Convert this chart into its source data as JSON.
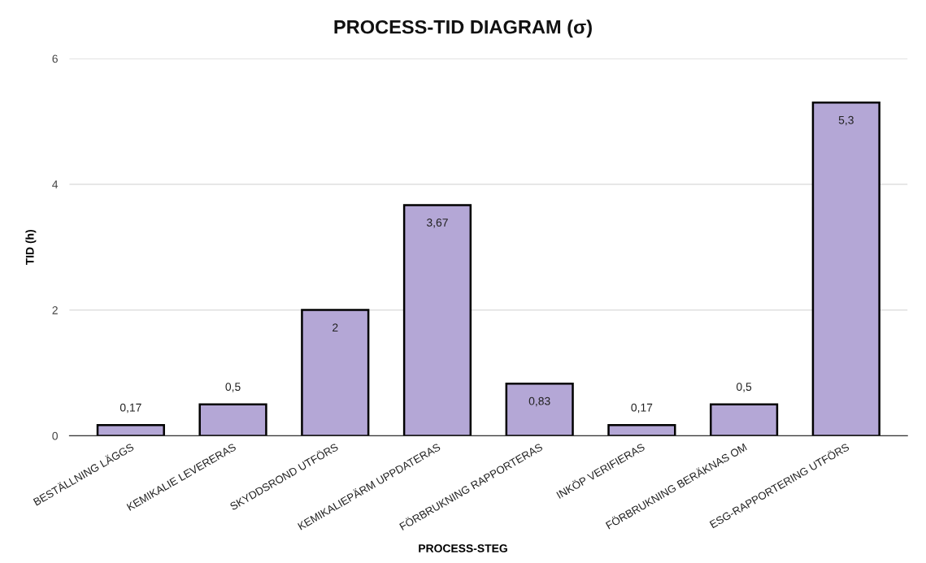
{
  "chart_data": {
    "type": "bar",
    "title": "PROCESS-TID DIAGRAM (σ)",
    "xlabel": "PROCESS-STEG",
    "ylabel": "TID (h)",
    "categories": [
      "BESTÄLLNING LÄGGS",
      "KEMIKALIE LEVERERAS",
      "SKYDDSROND UTFÖRS",
      "KEMIKALIEPÄRM UPPDATERAS",
      "FÖRBRUKNING RAPPORTERAS",
      "INKÖP VERIFIERAS",
      "FÖRBRUKNING BERÄKNAS OM",
      "ESG-RAPPORTERING UTFÖRS"
    ],
    "values": [
      0.17,
      0.5,
      2,
      3.67,
      0.83,
      0.17,
      0.5,
      5.3
    ],
    "value_labels": [
      "0,17",
      "0,5",
      "2",
      "3,67",
      "0,83",
      "0,17",
      "0,5",
      "5,3"
    ],
    "color": "#b4a7d6",
    "ylim": [
      0,
      6
    ],
    "yticks": [
      0,
      2,
      4,
      6
    ],
    "grid": "y"
  }
}
